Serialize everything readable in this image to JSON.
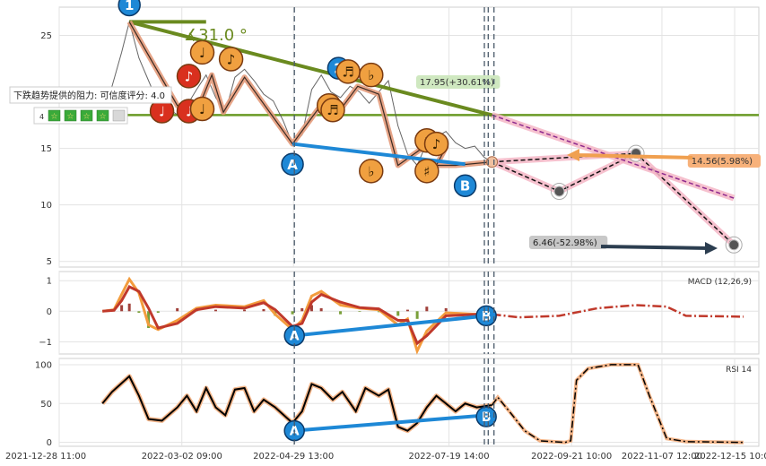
{
  "chart_data": [
    {
      "type": "line",
      "panel": "price",
      "ylim": [
        4.5,
        27.5
      ],
      "yticks": [
        "5",
        "10",
        "15",
        "25"
      ],
      "ytick_values": [
        5,
        10,
        15,
        25
      ],
      "grid": true,
      "price_series": [
        [
          "2022-01-20",
          19
        ],
        [
          "2022-01-25",
          20.5
        ],
        [
          "2022-01-30",
          23.5
        ],
        [
          "2022-02-03",
          26.2
        ],
        [
          "2022-02-08",
          23
        ],
        [
          "2022-02-13",
          21
        ],
        [
          "2022-02-18",
          19
        ],
        [
          "2022-02-23",
          18.5
        ],
        [
          "2022-02-28",
          18
        ],
        [
          "2022-03-05",
          18.8
        ],
        [
          "2022-03-10",
          20.2
        ],
        [
          "2022-03-15",
          21.5
        ],
        [
          "2022-03-20",
          19.5
        ],
        [
          "2022-03-25",
          18.2
        ],
        [
          "2022-03-30",
          21.3
        ],
        [
          "2022-04-04",
          22
        ],
        [
          "2022-04-09",
          21
        ],
        [
          "2022-04-14",
          19.8
        ],
        [
          "2022-04-19",
          19.2
        ],
        [
          "2022-04-24",
          17.5
        ],
        [
          "2022-04-29",
          15.4
        ],
        [
          "2022-05-04",
          16.2
        ],
        [
          "2022-05-09",
          20.2
        ],
        [
          "2022-05-14",
          21.5
        ],
        [
          "2022-05-19",
          20
        ],
        [
          "2022-05-24",
          19.5
        ],
        [
          "2022-05-29",
          20.5
        ],
        [
          "2022-06-03",
          20
        ],
        [
          "2022-06-08",
          19
        ],
        [
          "2022-06-13",
          20
        ],
        [
          "2022-06-18",
          21
        ],
        [
          "2022-06-23",
          17
        ],
        [
          "2022-06-28",
          14.5
        ],
        [
          "2022-07-03",
          13.5
        ],
        [
          "2022-07-08",
          15.5
        ],
        [
          "2022-07-13",
          16
        ],
        [
          "2022-07-18",
          16.5
        ],
        [
          "2022-07-23",
          15.5
        ],
        [
          "2022-07-28",
          15
        ],
        [
          "2022-08-02",
          15.2
        ],
        [
          "2022-08-07",
          14.2
        ],
        [
          "2022-08-11",
          13.8
        ]
      ],
      "wave_points": [
        [
          "2022-02-03",
          26.2
        ],
        [
          "2022-02-28",
          18.8
        ],
        [
          "2022-03-10",
          18.2
        ],
        [
          "2022-03-18",
          21.5
        ],
        [
          "2022-03-24",
          18.2
        ],
        [
          "2022-04-04",
          21.3
        ],
        [
          "2022-04-29",
          15.4
        ],
        [
          "2022-05-12",
          18.4
        ],
        [
          "2022-05-18",
          19.5
        ],
        [
          "2022-05-23",
          18.2
        ],
        [
          "2022-06-02",
          20.5
        ],
        [
          "2022-06-13",
          19.8
        ],
        [
          "2022-06-23",
          13.5
        ],
        [
          "2022-07-08",
          15.3
        ],
        [
          "2022-07-18",
          15.1
        ],
        [
          "2022-07-13",
          13.5
        ],
        [
          "2022-07-23",
          13.5
        ],
        [
          "2022-08-11",
          13.8
        ]
      ],
      "wave_labels": [
        {
          "x": "2022-02-03",
          "y": 27.7,
          "label": "1",
          "style": "blue"
        },
        {
          "x": "2022-05-23",
          "y": 22.1,
          "label": "2",
          "style": "blue"
        },
        {
          "x": "2022-04-29",
          "y": 13.6,
          "label": "A",
          "style": "blue"
        },
        {
          "x": "2022-07-28",
          "y": 11.7,
          "label": "B",
          "style": "blue"
        },
        {
          "x": "2022-02-20",
          "y": 18.3,
          "label": "♩",
          "style": "red"
        },
        {
          "x": "2022-03-06",
          "y": 21.4,
          "label": "♪",
          "style": "red"
        },
        {
          "x": "2022-03-06",
          "y": 18.3,
          "label": "♩",
          "style": "red"
        },
        {
          "x": "2022-03-13",
          "y": 23.5,
          "label": "♩",
          "style": "orange"
        },
        {
          "x": "2022-03-13",
          "y": 18.5,
          "label": "♩",
          "style": "orange"
        },
        {
          "x": "2022-03-28",
          "y": 22.9,
          "label": "♪",
          "style": "orange"
        },
        {
          "x": "2022-05-18",
          "y": 18.8,
          "label": "♪",
          "style": "orange"
        },
        {
          "x": "2022-05-20",
          "y": 18.4,
          "label": "♬",
          "style": "orange"
        },
        {
          "x": "2022-05-28",
          "y": 21.8,
          "label": "♬",
          "style": "orange"
        },
        {
          "x": "2022-06-09",
          "y": 21.5,
          "label": "♭",
          "style": "orange"
        },
        {
          "x": "2022-06-09",
          "y": 13,
          "label": "♭",
          "style": "orange"
        },
        {
          "x": "2022-07-08",
          "y": 15.7,
          "label": "♯",
          "style": "orange"
        },
        {
          "x": "2022-07-08",
          "y": 13,
          "label": "♯",
          "style": "orange"
        },
        {
          "x": "2022-07-13",
          "y": 15.4,
          "label": "♪",
          "style": "orange"
        }
      ],
      "resistance_line": {
        "from": [
          "2022-02-03",
          26.2
        ],
        "to": [
          "2022-08-11",
          17.95
        ]
      },
      "horizontal_level": 17.95,
      "target_paths": [
        [
          [
            "2022-08-11",
            13.8
          ],
          [
            "2022-09-15",
            11.2
          ],
          [
            "2022-10-25",
            14.56
          ]
        ],
        [
          [
            "2022-08-11",
            13.8
          ],
          [
            "2022-10-25",
            14.56
          ],
          [
            "2022-12-15",
            6.46
          ]
        ],
        [
          [
            "2022-08-11",
            17.95
          ],
          [
            "2022-12-15",
            10.6
          ]
        ]
      ],
      "target_points": [
        [
          "2022-09-15",
          11.2
        ],
        [
          "2022-10-25",
          14.56
        ],
        [
          "2022-12-15",
          6.46
        ]
      ],
      "annotations": {
        "angle": "∡31.0 °",
        "level_label": "17.95(+30.61%)",
        "upper_target": "14.56(5.98%)",
        "lower_target": "6.46(-52.98%)",
        "tooltip_text": "下跌趋势提供的阻力: 可信度评分:",
        "tooltip_score": "4.0",
        "rating_prefix": "4"
      }
    },
    {
      "type": "line",
      "panel": "macd",
      "title": "MACD (12,26,9)",
      "ylim": [
        -1.4,
        1.3
      ],
      "yticks": [
        "1",
        "0",
        "−1"
      ],
      "ytick_values": [
        1,
        0,
        -1
      ],
      "series": [
        {
          "color": "#f39c3d",
          "points": [
            [
              "2022-01-20",
              0
            ],
            [
              "2022-01-26",
              0.05
            ],
            [
              "2022-01-30",
              0.55
            ],
            [
              "2022-02-03",
              1.05
            ],
            [
              "2022-02-08",
              0.6
            ],
            [
              "2022-02-13",
              -0.45
            ],
            [
              "2022-02-18",
              -0.6
            ],
            [
              "2022-02-28",
              -0.3
            ],
            [
              "2022-03-10",
              0.1
            ],
            [
              "2022-03-20",
              0.2
            ],
            [
              "2022-04-04",
              0.15
            ],
            [
              "2022-04-14",
              0.35
            ],
            [
              "2022-04-20",
              -0.1
            ],
            [
              "2022-04-29",
              -0.6
            ],
            [
              "2022-05-04",
              -0.3
            ],
            [
              "2022-05-09",
              0.5
            ],
            [
              "2022-05-14",
              0.65
            ],
            [
              "2022-05-24",
              0.2
            ],
            [
              "2022-06-03",
              0.1
            ],
            [
              "2022-06-13",
              0.05
            ],
            [
              "2022-06-23",
              -0.45
            ],
            [
              "2022-06-28",
              -0.25
            ],
            [
              "2022-07-03",
              -1.3
            ],
            [
              "2022-07-08",
              -0.65
            ],
            [
              "2022-07-18",
              -0.05
            ],
            [
              "2022-08-03",
              -0.1
            ],
            [
              "2022-08-11",
              -0.15
            ]
          ]
        },
        {
          "color": "#c0392b",
          "points": [
            [
              "2022-01-20",
              0
            ],
            [
              "2022-01-26",
              0.03
            ],
            [
              "2022-01-30",
              0.35
            ],
            [
              "2022-02-03",
              0.8
            ],
            [
              "2022-02-08",
              0.65
            ],
            [
              "2022-02-13",
              0.1
            ],
            [
              "2022-02-18",
              -0.55
            ],
            [
              "2022-02-28",
              -0.4
            ],
            [
              "2022-03-10",
              0.05
            ],
            [
              "2022-03-20",
              0.15
            ],
            [
              "2022-04-04",
              0.1
            ],
            [
              "2022-04-14",
              0.28
            ],
            [
              "2022-04-20",
              0.05
            ],
            [
              "2022-04-29",
              -0.5
            ],
            [
              "2022-05-04",
              -0.4
            ],
            [
              "2022-05-09",
              0.3
            ],
            [
              "2022-05-14",
              0.55
            ],
            [
              "2022-05-24",
              0.3
            ],
            [
              "2022-06-03",
              0.12
            ],
            [
              "2022-06-13",
              0.08
            ],
            [
              "2022-06-23",
              -0.3
            ],
            [
              "2022-06-28",
              -0.3
            ],
            [
              "2022-07-03",
              -1.05
            ],
            [
              "2022-07-08",
              -0.8
            ],
            [
              "2022-07-18",
              -0.15
            ],
            [
              "2022-08-03",
              -0.1
            ],
            [
              "2022-08-11",
              -0.12
            ]
          ]
        }
      ],
      "forecast": [
        [
          "2022-08-11",
          -0.1
        ],
        [
          "2022-08-25",
          -0.2
        ],
        [
          "2022-09-15",
          -0.15
        ],
        [
          "2022-10-05",
          0.1
        ],
        [
          "2022-10-25",
          0.2
        ],
        [
          "2022-11-10",
          0.15
        ],
        [
          "2022-11-20",
          -0.15
        ],
        [
          "2022-12-20",
          -0.18
        ]
      ],
      "divergence_line": {
        "from": [
          "2022-04-30",
          -0.8
        ],
        "to": [
          "2022-08-08",
          -0.15
        ]
      },
      "labels": [
        {
          "x": "2022-04-30",
          "y": -0.8,
          "label": "A"
        },
        {
          "x": "2022-08-08",
          "y": -0.15,
          "label": "B"
        }
      ]
    },
    {
      "type": "line",
      "panel": "rsi",
      "title": "RSI 14",
      "ylim": [
        -5,
        108
      ],
      "yticks": [
        "100",
        "50",
        "0"
      ],
      "ytick_values": [
        100,
        50,
        0
      ],
      "series": [
        {
          "color": "#000000",
          "points": [
            [
              "2022-01-20",
              50
            ],
            [
              "2022-01-25",
              65
            ],
            [
              "2022-02-03",
              85
            ],
            [
              "2022-02-08",
              60
            ],
            [
              "2022-02-13",
              30
            ],
            [
              "2022-02-20",
              28
            ],
            [
              "2022-02-28",
              45
            ],
            [
              "2022-03-05",
              60
            ],
            [
              "2022-03-10",
              40
            ],
            [
              "2022-03-15",
              70
            ],
            [
              "2022-03-20",
              45
            ],
            [
              "2022-03-25",
              35
            ],
            [
              "2022-03-30",
              68
            ],
            [
              "2022-04-04",
              70
            ],
            [
              "2022-04-09",
              40
            ],
            [
              "2022-04-14",
              55
            ],
            [
              "2022-04-20",
              45
            ],
            [
              "2022-04-29",
              25
            ],
            [
              "2022-05-04",
              40
            ],
            [
              "2022-05-09",
              75
            ],
            [
              "2022-05-14",
              70
            ],
            [
              "2022-05-20",
              55
            ],
            [
              "2022-05-25",
              65
            ],
            [
              "2022-06-01",
              40
            ],
            [
              "2022-06-06",
              70
            ],
            [
              "2022-06-13",
              60
            ],
            [
              "2022-06-18",
              68
            ],
            [
              "2022-06-23",
              20
            ],
            [
              "2022-06-28",
              15
            ],
            [
              "2022-07-03",
              25
            ],
            [
              "2022-07-08",
              45
            ],
            [
              "2022-07-13",
              60
            ],
            [
              "2022-07-18",
              50
            ],
            [
              "2022-07-23",
              40
            ],
            [
              "2022-07-28",
              50
            ],
            [
              "2022-08-03",
              45
            ],
            [
              "2022-08-11",
              48
            ]
          ]
        }
      ],
      "forecast": [
        [
          "2022-08-11",
          48
        ],
        [
          "2022-08-14",
          58
        ],
        [
          "2022-08-20",
          40
        ],
        [
          "2022-08-28",
          15
        ],
        [
          "2022-09-05",
          2
        ],
        [
          "2022-09-18",
          0
        ],
        [
          "2022-09-21",
          2
        ],
        [
          "2022-09-24",
          80
        ],
        [
          "2022-09-30",
          95
        ],
        [
          "2022-10-12",
          100
        ],
        [
          "2022-10-26",
          100
        ],
        [
          "2022-11-01",
          60
        ],
        [
          "2022-11-10",
          5
        ],
        [
          "2022-11-20",
          1
        ],
        [
          "2022-12-20",
          0
        ]
      ],
      "divergence_line": {
        "from": [
          "2022-04-30",
          15
        ],
        "to": [
          "2022-08-08",
          35
        ]
      },
      "labels": [
        {
          "x": "2022-04-30",
          "y": 15,
          "label": "A"
        },
        {
          "x": "2022-08-08",
          "y": 33,
          "label": "B"
        }
      ]
    }
  ],
  "x_axis": {
    "range": [
      "2021-12-28 11:00",
      "2022-12-28"
    ],
    "tick_labels": [
      "2021-12-28 11:00",
      "2022-03-02 09:00",
      "2022-04-29 13:00",
      "2022-07-19 14:00",
      "2022-09-21 10:00",
      "2022-11-07 12:00",
      "2022-12-15 10:00"
    ],
    "vertical_markers": [
      "2022-04-30",
      "2022-08-07",
      "2022-08-09",
      "2022-08-12"
    ]
  },
  "colors": {
    "price": "#555555",
    "wave": "#e39a7a",
    "blue_marker": "#1e88d6",
    "red_marker": "#d9301e",
    "orange_marker": "#f0a040",
    "resistance": "#6a8a1f",
    "level": "#6a9a25",
    "target_path": "#f4b6c6",
    "divergence": "#1e88d6"
  }
}
